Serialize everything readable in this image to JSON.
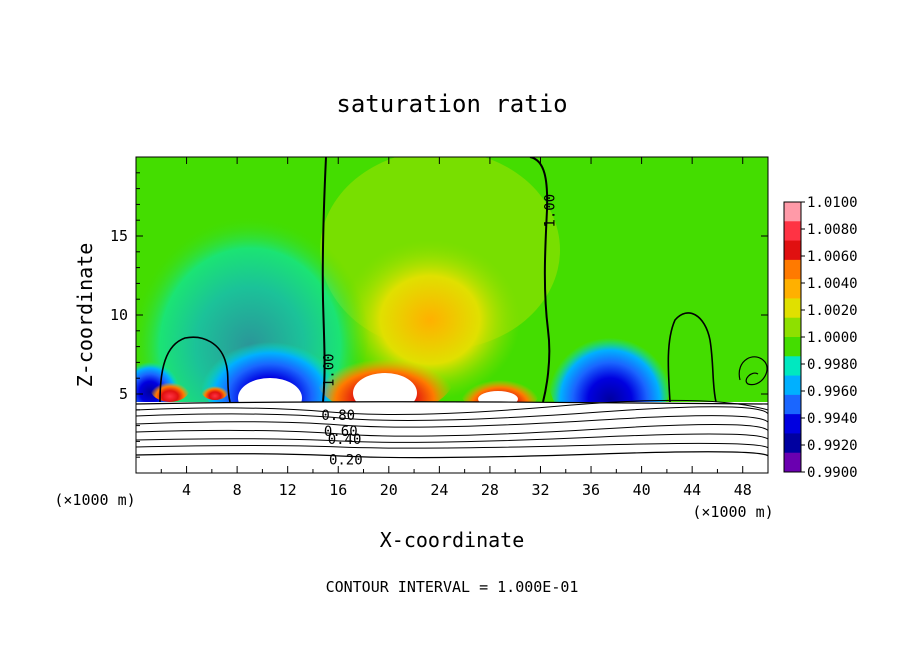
{
  "chart_data": {
    "type": "heatmap",
    "title": "saturation ratio",
    "xlabel": "X-coordinate",
    "ylabel": "Z-coordinate",
    "x_unit": "(×1000 m)",
    "footer": "CONTOUR INTERVAL = 1.000E-01",
    "xlim": [
      0,
      50
    ],
    "ylim": [
      0,
      20
    ],
    "x_ticks": [
      4,
      8,
      12,
      16,
      20,
      24,
      28,
      32,
      36,
      40,
      44,
      48
    ],
    "y_ticks": [
      5,
      10,
      15
    ],
    "colorbar": {
      "min": 0.99,
      "max": 1.01,
      "levels": [
        "1.0100",
        "1.0080",
        "1.0060",
        "1.0040",
        "1.0020",
        "1.0000",
        "0.9980",
        "0.9960",
        "0.9940",
        "0.9920",
        "0.9900"
      ],
      "colors": [
        "#ff9aa8",
        "#ff3344",
        "#e01010",
        "#ff7a00",
        "#ffb000",
        "#e0e000",
        "#8ee000",
        "#44dd00",
        "#00e8c0",
        "#00b0ff",
        "#1a66ff",
        "#0000e0",
        "#0000a0",
        "#6a00b0"
      ]
    },
    "contour_labels": [
      {
        "text": "1.00",
        "x": 15.3,
        "y": 6.5,
        "rotate": -90
      },
      {
        "text": "1.00",
        "x": 32.8,
        "y": 16.6,
        "rotate": -90
      },
      {
        "text": "0.80",
        "x": 16.0,
        "y": 3.6,
        "rotate": 0
      },
      {
        "text": "0.60",
        "x": 16.2,
        "y": 2.6,
        "rotate": 0
      },
      {
        "text": "0.40",
        "x": 16.5,
        "y": 2.1,
        "rotate": 0
      },
      {
        "text": "0.20",
        "x": 16.6,
        "y": 0.8,
        "rotate": 0
      }
    ]
  }
}
